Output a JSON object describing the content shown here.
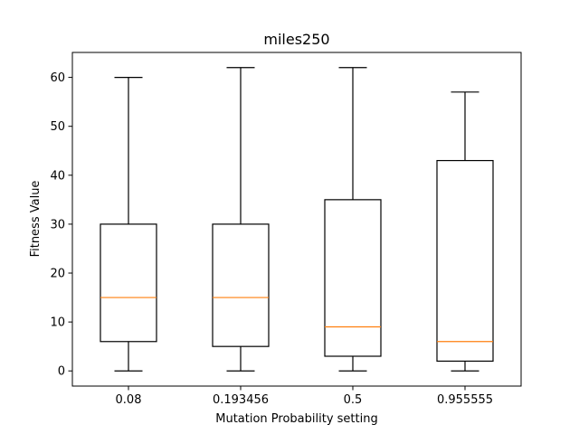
{
  "chart_data": {
    "type": "box",
    "title": "miles250",
    "xlabel": "Mutation Probability setting",
    "ylabel": "Fitness Value",
    "categories": [
      "0.08",
      "0.193456",
      "0.5",
      "0.955555"
    ],
    "boxes": [
      {
        "whisker_low": 0,
        "q1": 6,
        "median": 15,
        "q3": 30,
        "whisker_high": 60
      },
      {
        "whisker_low": 0,
        "q1": 5,
        "median": 15,
        "q3": 30,
        "whisker_high": 62
      },
      {
        "whisker_low": 0,
        "q1": 3,
        "median": 9,
        "q3": 35,
        "whisker_high": 62
      },
      {
        "whisker_low": 0,
        "q1": 2,
        "median": 6,
        "q3": 43,
        "whisker_high": 57
      }
    ],
    "ylim": [
      -3.1,
      65.1
    ],
    "yticks": [
      0,
      10,
      20,
      30,
      40,
      50,
      60
    ],
    "grid": false,
    "colors": {
      "box": "#000000",
      "median": "#ff7f0e",
      "axes": "#000000"
    }
  }
}
